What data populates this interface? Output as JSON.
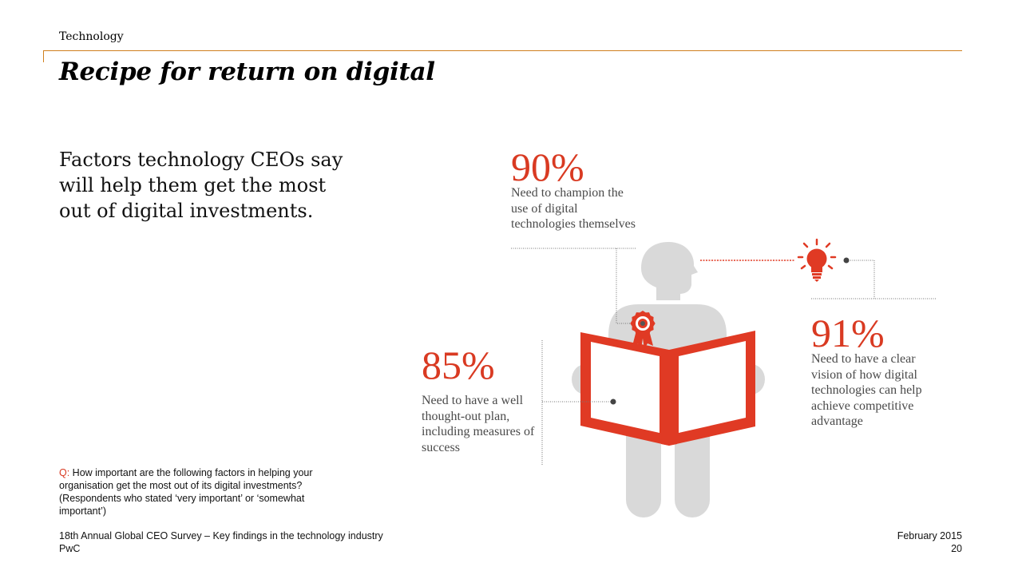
{
  "header": {
    "section_label": "Technology",
    "title": "Recipe for return on digital",
    "accent_color": "#d0801e"
  },
  "intro": {
    "text": "Factors technology CEOs say will help them get the most out of digital investments."
  },
  "stats": [
    {
      "value": "90%",
      "description": "Need to champion the use of digital technologies themselves",
      "icon": "rosette-icon"
    },
    {
      "value": "91%",
      "description": "Need to have a clear vision of how digital technologies can help achieve competitive advantage",
      "icon": "lightbulb-icon"
    },
    {
      "value": "85%",
      "description": "Need to have a well thought-out plan, including measures of success",
      "icon": "open-book-icon"
    }
  ],
  "colors": {
    "stat": "#d93a22",
    "figure": "#d9d9d9",
    "book": "#e03a24"
  },
  "question": {
    "prefix": "Q:",
    "text": " How important are the following factors in helping your organisation get the most out of its digital investments? (Respondents who stated ‘very important’ or ‘somewhat important’)"
  },
  "footer": {
    "survey": "18th Annual Global CEO Survey – Key findings in the technology industry",
    "brand": "PwC",
    "date": "February 2015",
    "page": "20"
  }
}
